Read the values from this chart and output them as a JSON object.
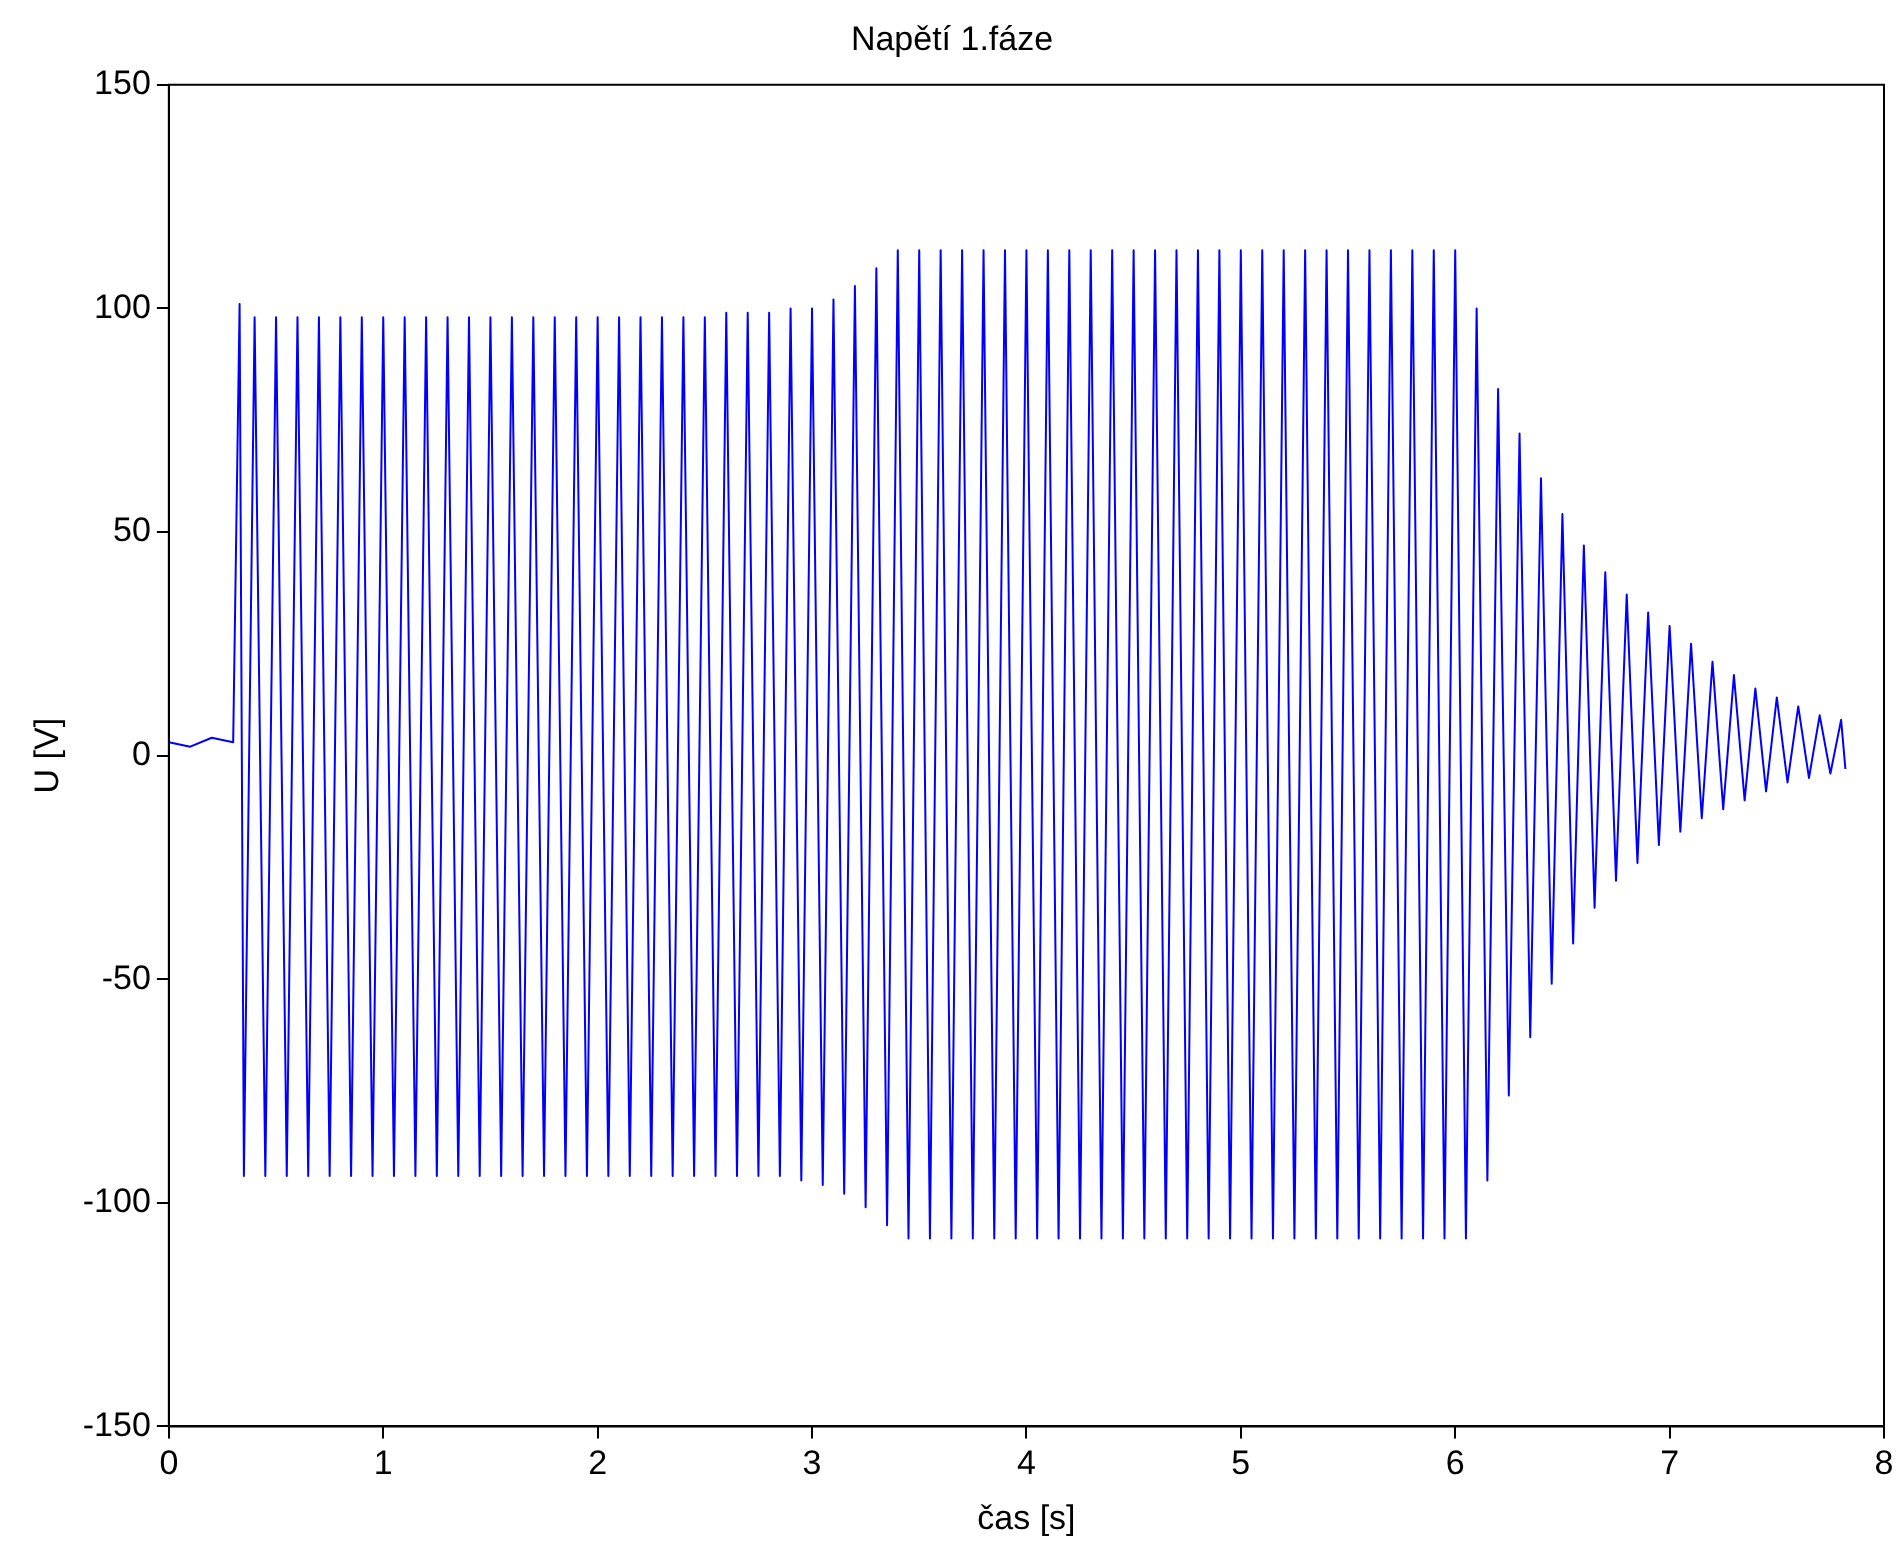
{
  "chart_data": {
    "type": "line",
    "title": "Napětí 1.fáze",
    "xlabel": "čas [s]",
    "ylabel": "U [V]",
    "xlim": [
      0,
      8
    ],
    "xticks": [
      0,
      1,
      2,
      3,
      4,
      5,
      6,
      7,
      8
    ],
    "ylim": [
      -150,
      150
    ],
    "yticks": [
      -150,
      -100,
      -50,
      0,
      50,
      100,
      150
    ],
    "x": [
      0,
      0.1,
      0.2,
      0.3,
      0.33,
      0.35,
      0.4,
      0.45,
      0.5,
      0.55,
      0.6,
      0.65,
      0.7,
      0.75,
      0.8,
      0.85,
      0.9,
      0.95,
      1,
      1.05,
      1.1,
      1.15,
      1.2,
      1.25,
      1.3,
      1.35,
      1.4,
      1.45,
      1.5,
      1.55,
      1.6,
      1.65,
      1.7,
      1.75,
      1.8,
      1.85,
      1.9,
      1.95,
      2,
      2.05,
      2.1,
      2.15,
      2.2,
      2.25,
      2.3,
      2.35,
      2.4,
      2.45,
      2.5,
      2.55,
      2.6,
      2.65,
      2.7,
      2.75,
      2.8,
      2.85,
      2.9,
      2.95,
      3,
      3.05,
      3.1,
      3.15,
      3.2,
      3.25,
      3.3,
      3.35,
      3.4,
      3.45,
      3.5,
      3.55,
      3.6,
      3.65,
      3.7,
      3.75,
      3.8,
      3.85,
      3.9,
      3.95,
      4,
      4.05,
      4.1,
      4.15,
      4.2,
      4.25,
      4.3,
      4.35,
      4.4,
      4.45,
      4.5,
      4.55,
      4.6,
      4.65,
      4.7,
      4.75,
      4.8,
      4.85,
      4.9,
      4.95,
      5,
      5.05,
      5.1,
      5.15,
      5.2,
      5.25,
      5.3,
      5.35,
      5.4,
      5.45,
      5.5,
      5.55,
      5.6,
      5.65,
      5.7,
      5.75,
      5.8,
      5.85,
      5.9,
      5.95,
      6,
      6.05,
      6.1,
      6.15,
      6.2,
      6.25,
      6.3,
      6.35,
      6.4,
      6.45,
      6.5,
      6.55,
      6.6,
      6.65,
      6.7,
      6.75,
      6.8,
      6.85,
      6.9,
      6.95,
      7,
      7.05,
      7.1,
      7.15,
      7.2,
      7.25,
      7.3,
      7.35,
      7.4,
      7.45,
      7.5,
      7.55,
      7.6,
      7.65,
      7.7,
      7.75,
      7.8,
      7.82
    ],
    "series": [
      {
        "color": "#0000ff",
        "values": [
          3,
          2,
          4,
          3,
          101,
          -94,
          98,
          -94,
          98,
          -94,
          98,
          -94,
          98,
          -94,
          98,
          -94,
          98,
          -94,
          98,
          -94,
          98,
          -94,
          98,
          -94,
          98,
          -94,
          98,
          -94,
          98,
          -94,
          98,
          -94,
          98,
          -94,
          98,
          -94,
          98,
          -94,
          98,
          -94,
          98,
          -94,
          98,
          -94,
          98,
          -94,
          98,
          -94,
          98,
          -94,
          99,
          -94,
          99,
          -94,
          99,
          -94,
          100,
          -95,
          100,
          -96,
          102,
          -98,
          105,
          -101,
          109,
          -105,
          113,
          -108,
          113,
          -108,
          113,
          -108,
          113,
          -108,
          113,
          -108,
          113,
          -108,
          113,
          -108,
          113,
          -108,
          113,
          -108,
          113,
          -108,
          113,
          -108,
          113,
          -108,
          113,
          -108,
          113,
          -108,
          113,
          -108,
          113,
          -108,
          113,
          -108,
          113,
          -108,
          113,
          -108,
          113,
          -108,
          113,
          -108,
          113,
          -108,
          113,
          -108,
          113,
          -108,
          113,
          -108,
          113,
          -108,
          113,
          -108,
          100,
          -95,
          82,
          -76,
          72,
          -63,
          62,
          -51,
          54,
          -42,
          47,
          -34,
          41,
          -28,
          36,
          -24,
          32,
          -20,
          29,
          -17,
          25,
          -14,
          21,
          -12,
          18,
          -10,
          15,
          -8,
          13,
          -6,
          11,
          -5,
          9,
          -4,
          8,
          -3
        ]
      }
    ]
  }
}
